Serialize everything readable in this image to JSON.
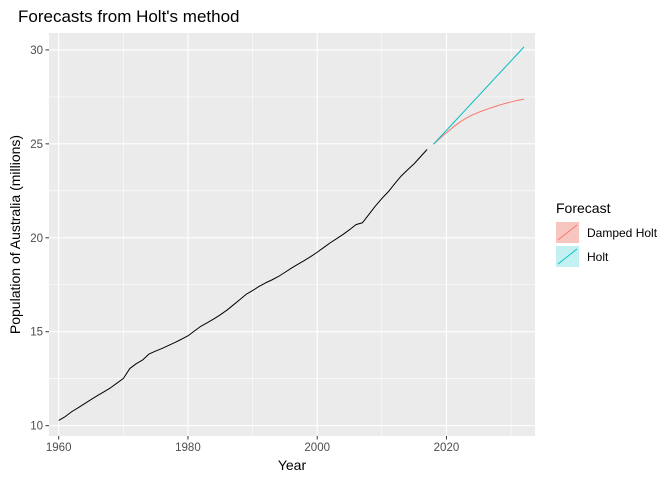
{
  "chart_data": {
    "type": "line",
    "title": "Forecasts from Holt's method",
    "xlabel": "Year",
    "ylabel": "Population of Australia (millions)",
    "xlim": [
      1958.5,
      2033.7
    ],
    "ylim": [
      9.45,
      30.9
    ],
    "x_ticks": [
      1960,
      1980,
      2000,
      2020
    ],
    "y_ticks": [
      10,
      15,
      20,
      25,
      30
    ],
    "grid": true,
    "legend": {
      "title": "Forecast",
      "position": "right",
      "entries": [
        {
          "name": "Damped Holt",
          "color": "#F8766D",
          "fill": "#F8C6C0"
        },
        {
          "name": "Holt",
          "color": "#00BFC4",
          "fill": "#C3F1F2"
        }
      ]
    },
    "series": [
      {
        "role": "observed",
        "color": "#000000",
        "x": [
          1960,
          1961,
          1962,
          1963,
          1964,
          1965,
          1966,
          1967,
          1968,
          1969,
          1970,
          1971,
          1972,
          1973,
          1974,
          1975,
          1976,
          1977,
          1978,
          1979,
          1980,
          1981,
          1982,
          1983,
          1984,
          1985,
          1986,
          1987,
          1988,
          1989,
          1990,
          1991,
          1992,
          1993,
          1994,
          1995,
          1996,
          1997,
          1998,
          1999,
          2000,
          2001,
          2002,
          2003,
          2004,
          2005,
          2006,
          2007,
          2008,
          2009,
          2010,
          2011,
          2012,
          2013,
          2014,
          2015,
          2016,
          2017
        ],
        "y": [
          10.28,
          10.48,
          10.74,
          10.95,
          11.17,
          11.39,
          11.6,
          11.8,
          12.01,
          12.26,
          12.51,
          13.04,
          13.3,
          13.5,
          13.82,
          13.97,
          14.11,
          14.27,
          14.43,
          14.6,
          14.78,
          15.04,
          15.29,
          15.48,
          15.68,
          15.9,
          16.14,
          16.42,
          16.7,
          16.99,
          17.19,
          17.41,
          17.6,
          17.76,
          17.94,
          18.16,
          18.38,
          18.59,
          18.79,
          19.0,
          19.23,
          19.48,
          19.73,
          19.95,
          20.18,
          20.43,
          20.7,
          20.8,
          21.24,
          21.69,
          22.09,
          22.45,
          22.88,
          23.29,
          23.62,
          23.94,
          24.32,
          24.7
        ]
      },
      {
        "name": "Damped Holt",
        "color": "#F8766D",
        "x": [
          2018,
          2019,
          2020,
          2021,
          2022,
          2023,
          2024,
          2025,
          2026,
          2027,
          2028,
          2029,
          2030,
          2031,
          2032
        ],
        "y": [
          24.98,
          25.3,
          25.6,
          25.88,
          26.14,
          26.36,
          26.54,
          26.68,
          26.81,
          26.93,
          27.04,
          27.14,
          27.23,
          27.31,
          27.38
        ]
      },
      {
        "name": "Holt",
        "color": "#00BFC4",
        "x": [
          2018,
          2019,
          2020,
          2021,
          2022,
          2023,
          2024,
          2025,
          2026,
          2027,
          2028,
          2029,
          2030,
          2031,
          2032
        ],
        "y": [
          24.98,
          25.35,
          25.72,
          26.09,
          26.46,
          26.83,
          27.2,
          27.57,
          27.94,
          28.31,
          28.68,
          29.05,
          29.42,
          29.79,
          30.16
        ]
      }
    ]
  }
}
